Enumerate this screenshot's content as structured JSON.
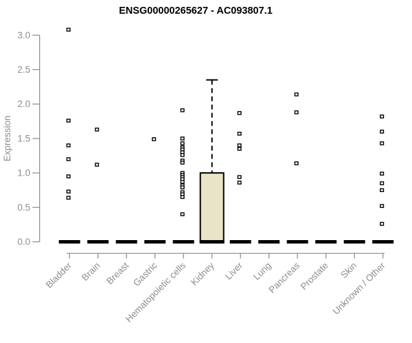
{
  "chart_data": {
    "type": "boxplot",
    "title": "ENSG00000265627 - AC093807.1",
    "ylabel": "Expression",
    "xlabel": "",
    "ylim": [
      0.0,
      3.0
    ],
    "yticks": [
      0.0,
      0.5,
      1.0,
      1.5,
      2.0,
      2.5,
      3.0
    ],
    "ytick_labels": [
      "0.0",
      "0.5",
      "1.0",
      "1.5",
      "2.0",
      "2.5",
      "3.0"
    ],
    "grid": false,
    "legend": "none",
    "categories": [
      "Bladder",
      "Brain",
      "Breast",
      "Gastric",
      "Hematopoietic cells",
      "Kidney",
      "Liver",
      "Lung",
      "Pancreas",
      "Prostate",
      "Skin",
      "Unknown / Other"
    ],
    "boxes": [
      {
        "category": "Bladder",
        "q1": 0,
        "median": 0,
        "q3": 0,
        "whisker_low": 0,
        "whisker_high": 0,
        "points": [
          3.08,
          1.76,
          1.4,
          1.2,
          0.95,
          0.73,
          0.64
        ]
      },
      {
        "category": "Brain",
        "q1": 0,
        "median": 0,
        "q3": 0,
        "whisker_low": 0,
        "whisker_high": 0,
        "points": [
          1.63,
          1.12
        ]
      },
      {
        "category": "Breast",
        "q1": 0,
        "median": 0,
        "q3": 0,
        "whisker_low": 0,
        "whisker_high": 0,
        "points": []
      },
      {
        "category": "Gastric",
        "q1": 0,
        "median": 0,
        "q3": 0,
        "whisker_low": 0,
        "whisker_high": 0,
        "points": [
          1.49
        ]
      },
      {
        "category": "Hematopoietic cells",
        "q1": 0,
        "median": 0,
        "q3": 0,
        "whisker_low": 0,
        "whisker_high": 0,
        "points": [
          1.91,
          1.5,
          1.43,
          1.37,
          1.34,
          1.3,
          1.26,
          1.18,
          1.15,
          1.0,
          0.97,
          0.94,
          0.91,
          0.87,
          0.82,
          0.79,
          0.72,
          0.69,
          0.65,
          0.4
        ]
      },
      {
        "category": "Kidney",
        "q1": 0,
        "median": 0,
        "q3": 1.0,
        "whisker_low": 0,
        "whisker_high": 2.35,
        "points": []
      },
      {
        "category": "Liver",
        "q1": 0,
        "median": 0,
        "q3": 0,
        "whisker_low": 0,
        "whisker_high": 0,
        "points": [
          1.87,
          1.57,
          1.4,
          1.35,
          0.94,
          0.86
        ]
      },
      {
        "category": "Lung",
        "q1": 0,
        "median": 0,
        "q3": 0,
        "whisker_low": 0,
        "whisker_high": 0,
        "points": []
      },
      {
        "category": "Pancreas",
        "q1": 0,
        "median": 0,
        "q3": 0,
        "whisker_low": 0,
        "whisker_high": 0,
        "points": [
          2.14,
          1.88,
          1.14
        ]
      },
      {
        "category": "Prostate",
        "q1": 0,
        "median": 0,
        "q3": 0,
        "whisker_low": 0,
        "whisker_high": 0,
        "points": []
      },
      {
        "category": "Skin",
        "q1": 0,
        "median": 0,
        "q3": 0,
        "whisker_low": 0,
        "whisker_high": 0,
        "points": []
      },
      {
        "category": "Unknown / Other",
        "q1": 0,
        "median": 0,
        "q3": 0,
        "whisker_low": 0,
        "whisker_high": 0,
        "points": [
          1.82,
          1.6,
          1.43,
          0.99,
          0.85,
          0.75,
          0.52,
          0.26
        ]
      }
    ],
    "colors": {
      "title": "#000000",
      "axis": "#888888",
      "tick_label": "#8e8e8e",
      "box_fill": "#e9e3c8",
      "box_border": "#000000",
      "marker": "#000000",
      "background": "#ffffff"
    }
  }
}
